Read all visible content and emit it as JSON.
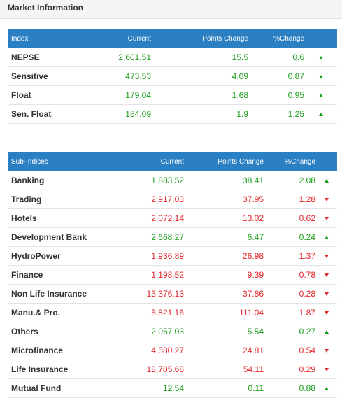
{
  "title": "Market Information",
  "colors": {
    "header_bg": "#2b7fc3",
    "up": "#1a9e1a",
    "down": "#e2262b"
  },
  "index_table": {
    "headers": [
      "Index",
      "Current",
      "Points Change",
      "%Change"
    ],
    "rows": [
      {
        "name": "NEPSE",
        "current": "2,601.51",
        "points": "15.5",
        "pct": "0.6",
        "dir": "up"
      },
      {
        "name": "Sensitive",
        "current": "473.53",
        "points": "4.09",
        "pct": "0.87",
        "dir": "up"
      },
      {
        "name": "Float",
        "current": "179.04",
        "points": "1.68",
        "pct": "0.95",
        "dir": "up"
      },
      {
        "name": "Sen. Float",
        "current": "154.09",
        "points": "1.9",
        "pct": "1.25",
        "dir": "up"
      }
    ]
  },
  "subindex_table": {
    "headers": [
      "Sub-Indices",
      "Current",
      "Points Change",
      "%Change"
    ],
    "rows": [
      {
        "name": "Banking",
        "current": "1,883.52",
        "points": "38.41",
        "pct": "2.08",
        "dir": "up"
      },
      {
        "name": "Trading",
        "current": "2,917.03",
        "points": "37.95",
        "pct": "1.28",
        "dir": "down"
      },
      {
        "name": "Hotels",
        "current": "2,072.14",
        "points": "13.02",
        "pct": "0.62",
        "dir": "down"
      },
      {
        "name": "Development Bank",
        "current": "2,668.27",
        "points": "6.47",
        "pct": "0.24",
        "dir": "up"
      },
      {
        "name": "HydroPower",
        "current": "1,936.89",
        "points": "26.98",
        "pct": "1.37",
        "dir": "down"
      },
      {
        "name": "Finance",
        "current": "1,198.52",
        "points": "9.39",
        "pct": "0.78",
        "dir": "down"
      },
      {
        "name": "Non Life Insurance",
        "current": "13,376.13",
        "points": "37.86",
        "pct": "0.28",
        "dir": "down"
      },
      {
        "name": "Manu.& Pro.",
        "current": "5,821.16",
        "points": "111.04",
        "pct": "1.87",
        "dir": "down"
      },
      {
        "name": "Others",
        "current": "2,057.03",
        "points": "5.54",
        "pct": "0.27",
        "dir": "up"
      },
      {
        "name": "Microfinance",
        "current": "4,580.27",
        "points": "24.81",
        "pct": "0.54",
        "dir": "down"
      },
      {
        "name": "Life Insurance",
        "current": "18,705.68",
        "points": "54.11",
        "pct": "0.29",
        "dir": "down"
      },
      {
        "name": "Mutual Fund",
        "current": "12.54",
        "points": "0.11",
        "pct": "0.88",
        "dir": "up"
      }
    ]
  }
}
